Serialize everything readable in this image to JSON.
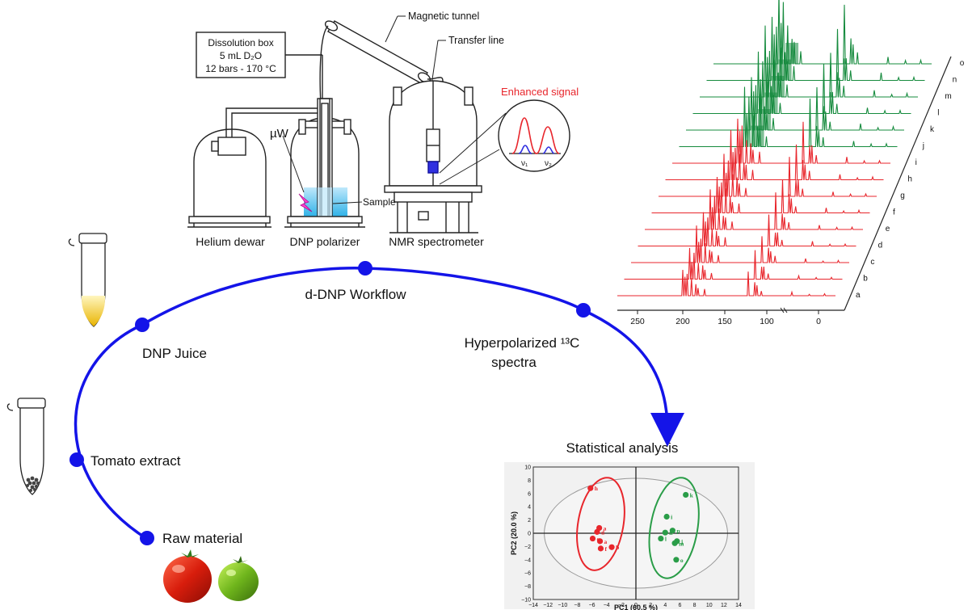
{
  "apparatus": {
    "dissolution_box": [
      "Dissolution box",
      "5 mL D₂O",
      "12 bars - 170 °C"
    ],
    "magnetic_tunnel": "Magnetic tunnel",
    "transfer_line": "Transfer line",
    "microwave": "µW",
    "sample": "Sample",
    "enhanced_signal": "Enhanced signal",
    "nu1": "ν₁",
    "nu2": "ν₂",
    "helium_dewar": "Helium dewar",
    "dnp_polarizer": "DNP polarizer",
    "nmr_spectrometer": "NMR spectrometer"
  },
  "workflow": {
    "title": "d-DNP Workflow",
    "steps": [
      "Raw material",
      "Tomato extract",
      "DNP Juice",
      "Hyperpolarized ¹³C",
      "spectra"
    ],
    "final": "Statistical analysis"
  },
  "spectra": {
    "letters": [
      "a",
      "b",
      "c",
      "d",
      "e",
      "f",
      "g",
      "h",
      "i",
      "j",
      "k",
      "l",
      "m",
      "n",
      "o"
    ],
    "x_ticks": [
      "250",
      "200",
      "150",
      "100",
      "0"
    ],
    "red_color": "#e8262c",
    "green_color": "#168b3e"
  },
  "chart_data": {
    "type": "scatter",
    "xlabel": "PC1 (60.5 %)",
    "ylabel": "PC2 (20.0 %)",
    "xlim": [
      -14,
      14
    ],
    "ylim": [
      -10,
      10
    ],
    "xticks": [
      "−14",
      "−12",
      "−10",
      "−8",
      "−6",
      "−4",
      "−2",
      "0",
      "2",
      "4",
      "6",
      "8",
      "10",
      "12",
      "14"
    ],
    "yticks": [
      "10",
      "8",
      "6",
      "4",
      "2",
      "0",
      "−2",
      "−4",
      "−6",
      "−8",
      "−10"
    ],
    "series": [
      {
        "color": "#e8262c",
        "points": [
          {
            "label": "h",
            "x": -6.2,
            "y": 6.8
          },
          {
            "label": "a",
            "x": -5.0,
            "y": 0.8
          },
          {
            "label": "d",
            "x": -5.3,
            "y": 0.2
          },
          {
            "label": "c",
            "x": -5.9,
            "y": -0.8
          },
          {
            "label": "a",
            "x": -4.9,
            "y": -1.2
          },
          {
            "label": "b",
            "x": -3.3,
            "y": -2.1
          },
          {
            "label": "f",
            "x": -4.8,
            "y": -2.3
          }
        ]
      },
      {
        "color": "#2a9d48",
        "points": [
          {
            "label": "k",
            "x": 6.8,
            "y": 5.8
          },
          {
            "label": "i",
            "x": 4.2,
            "y": 2.5
          },
          {
            "label": "p",
            "x": 5.0,
            "y": 0.4
          },
          {
            "label": "n",
            "x": 4.0,
            "y": 0.1
          },
          {
            "label": "l",
            "x": 3.4,
            "y": -0.8
          },
          {
            "label": "j",
            "x": 5.6,
            "y": -1.2
          },
          {
            "label": "m",
            "x": 5.3,
            "y": -1.5
          },
          {
            "label": "o",
            "x": 5.5,
            "y": -4.0
          }
        ]
      }
    ]
  }
}
